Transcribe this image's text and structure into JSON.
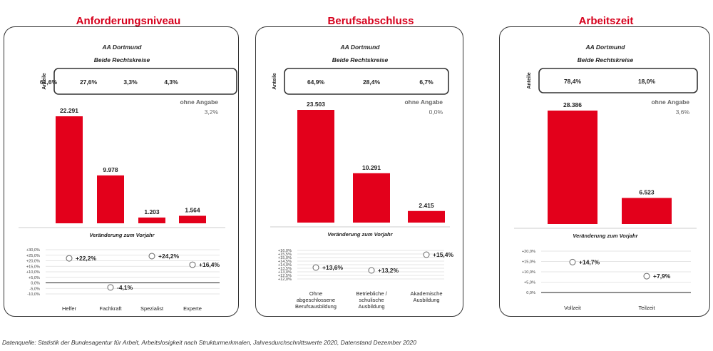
{
  "colors": {
    "accent": "#d6001c",
    "bar": "#e3001b",
    "frame": "#333333",
    "grid": "#dddddd"
  },
  "footer": "Datenquelle: Statistik der Bundesagentur für Arbeit, Arbeitslosigkeit nach Strukturmerkmalen, Jahresdurchschnittswerte 2020, Datenstand Dezember 2020",
  "chart_data": [
    {
      "type": "bar",
      "title": "Anforderungsniveau",
      "region": "AA Dortmund",
      "scope": "Beide Rechtskreise",
      "shares_label": "Anteile",
      "shares": [
        "61,6%",
        "27,6%",
        "3,3%",
        "4,3%"
      ],
      "no_answer_label": "ohne Angabe",
      "no_answer_value": "3,2%",
      "categories": [
        "Helfer",
        "Fachkraft",
        "Spezialist",
        "Experte"
      ],
      "values": [
        22291,
        9978,
        1203,
        1564
      ],
      "value_labels": [
        "22.291",
        "9.978",
        "1.203",
        "1.564"
      ],
      "change_title": "Veränderung zum Vorjahr",
      "change_values": [
        22.2,
        -4.1,
        24.2,
        16.4
      ],
      "change_labels": [
        "+22,2%",
        "-4,1%",
        "+24,2%",
        "+16,4%"
      ],
      "change_ticks": [
        "+30,0%",
        "+25,0%",
        "+20,0%",
        "+15,0%",
        "+10,0%",
        "+5,0%",
        "0,0%",
        "-5,0%",
        "-10,0%"
      ],
      "change_range": [
        -10,
        30
      ]
    },
    {
      "type": "bar",
      "title": "Berufsabschluss",
      "region": "AA Dortmund",
      "scope": "Beide Rechtskreise",
      "shares_label": "Anteile",
      "shares": [
        "64,9%",
        "28,4%",
        "6,7%"
      ],
      "no_answer_label": "ohne Angabe",
      "no_answer_value": "0,0%",
      "categories": [
        [
          "Ohne",
          "abgeschlossene",
          "Berufsausbildung"
        ],
        [
          "Betriebliche /",
          "schulische",
          "Ausbildung"
        ],
        [
          "Akademische",
          "Ausbildung"
        ]
      ],
      "values": [
        23503,
        10291,
        2415
      ],
      "value_labels": [
        "23.503",
        "10.291",
        "2.415"
      ],
      "change_title": "Veränderung zum Vorjahr",
      "change_values": [
        13.6,
        13.2,
        15.4
      ],
      "change_labels": [
        "+13,6%",
        "+13,2%",
        "+15,4%"
      ],
      "change_ticks": [
        "+16,0%",
        "+15,5%",
        "+15,0%",
        "+14,5%",
        "+14,0%",
        "+13,5%",
        "+13,0%",
        "+12,5%",
        "+12,0%"
      ],
      "change_range": [
        12,
        16
      ]
    },
    {
      "type": "bar",
      "title": "Arbeitszeit",
      "region": "AA Dortmund",
      "scope": "Beide Rechtskreise",
      "shares_label": "Anteile",
      "shares": [
        "78,4%",
        "18,0%"
      ],
      "no_answer_label": "ohne Angabe",
      "no_answer_value": "3,6%",
      "categories": [
        "Vollzeit",
        "Teilzeit"
      ],
      "values": [
        28386,
        6523
      ],
      "value_labels": [
        "28.386",
        "6.523"
      ],
      "change_title": "Veränderung zum Vorjahr",
      "change_values": [
        14.7,
        7.9
      ],
      "change_labels": [
        "+14,7%",
        "+7,9%"
      ],
      "change_ticks": [
        "+20,0%",
        "+15,0%",
        "+10,0%",
        "+5,0%",
        "0,0%"
      ],
      "change_range": [
        0,
        20
      ]
    }
  ]
}
